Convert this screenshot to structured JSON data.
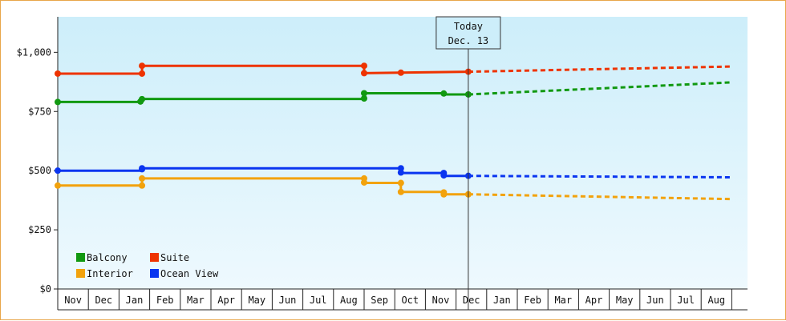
{
  "chart_data": {
    "type": "line",
    "title": "",
    "xlabel": "",
    "ylabel": "",
    "ylim": [
      0,
      1150
    ],
    "yticks": [
      {
        "value": 0,
        "label": "$0"
      },
      {
        "value": 250,
        "label": "$250"
      },
      {
        "value": 500,
        "label": "$500"
      },
      {
        "value": 750,
        "label": "$750"
      },
      {
        "value": 1000,
        "label": "$1,000"
      }
    ],
    "months": [
      "Nov",
      "Dec",
      "Jan",
      "Feb",
      "Mar",
      "Apr",
      "May",
      "Jun",
      "Jul",
      "Aug",
      "Sep",
      "Oct",
      "Nov",
      "Dec",
      "Jan",
      "Feb",
      "Mar",
      "Apr",
      "May",
      "Jun",
      "Jul",
      "Aug"
    ],
    "today": {
      "line1": "Today",
      "line2": "Dec. 13",
      "position": 13.4
    },
    "legend_position": "bottom-left",
    "grid": false,
    "series": [
      {
        "name": "Balcony",
        "color": "#119911",
        "history": [
          {
            "x": 0.0,
            "y": 790
          },
          {
            "x": 2.75,
            "y": 790
          },
          {
            "x": 2.75,
            "y": 803
          },
          {
            "x": 10.0,
            "y": 803
          },
          {
            "x": 10.0,
            "y": 827
          },
          {
            "x": 12.6,
            "y": 827
          },
          {
            "x": 12.6,
            "y": 822
          },
          {
            "x": 13.4,
            "y": 822
          }
        ],
        "markers": [
          {
            "x": 0.0,
            "y": 790
          },
          {
            "x": 2.7,
            "y": 792
          },
          {
            "x": 2.75,
            "y": 802
          },
          {
            "x": 10.0,
            "y": 805
          },
          {
            "x": 10.0,
            "y": 827
          },
          {
            "x": 12.6,
            "y": 826
          },
          {
            "x": 13.4,
            "y": 822
          }
        ],
        "forecast": [
          {
            "x": 13.4,
            "y": 822
          },
          {
            "x": 22.0,
            "y": 873
          }
        ]
      },
      {
        "name": "Suite",
        "color": "#ee3300",
        "history": [
          {
            "x": 0.0,
            "y": 910
          },
          {
            "x": 2.75,
            "y": 910
          },
          {
            "x": 2.75,
            "y": 943
          },
          {
            "x": 10.0,
            "y": 943
          },
          {
            "x": 10.0,
            "y": 912
          },
          {
            "x": 13.4,
            "y": 918
          }
        ],
        "markers": [
          {
            "x": 0.0,
            "y": 910
          },
          {
            "x": 2.75,
            "y": 910
          },
          {
            "x": 2.75,
            "y": 943
          },
          {
            "x": 10.0,
            "y": 943
          },
          {
            "x": 10.0,
            "y": 912
          },
          {
            "x": 11.2,
            "y": 914
          },
          {
            "x": 13.4,
            "y": 918
          }
        ],
        "forecast": [
          {
            "x": 13.4,
            "y": 918
          },
          {
            "x": 22.0,
            "y": 940
          }
        ]
      },
      {
        "name": "Interior",
        "color": "#f2a20c",
        "history": [
          {
            "x": 0.0,
            "y": 437
          },
          {
            "x": 2.75,
            "y": 437
          },
          {
            "x": 2.75,
            "y": 467
          },
          {
            "x": 10.0,
            "y": 467
          },
          {
            "x": 10.0,
            "y": 448
          },
          {
            "x": 11.2,
            "y": 448
          },
          {
            "x": 11.2,
            "y": 410
          },
          {
            "x": 12.6,
            "y": 410
          },
          {
            "x": 12.6,
            "y": 400
          },
          {
            "x": 13.4,
            "y": 400
          }
        ],
        "markers": [
          {
            "x": 0.0,
            "y": 437
          },
          {
            "x": 2.75,
            "y": 437
          },
          {
            "x": 2.75,
            "y": 467
          },
          {
            "x": 10.0,
            "y": 467
          },
          {
            "x": 10.0,
            "y": 450
          },
          {
            "x": 11.2,
            "y": 448
          },
          {
            "x": 11.2,
            "y": 410
          },
          {
            "x": 12.6,
            "y": 408
          },
          {
            "x": 12.6,
            "y": 400
          },
          {
            "x": 13.4,
            "y": 400
          }
        ],
        "forecast": [
          {
            "x": 13.4,
            "y": 400
          },
          {
            "x": 22.0,
            "y": 380
          }
        ]
      },
      {
        "name": "Ocean View",
        "color": "#0a35f0",
        "history": [
          {
            "x": 0.0,
            "y": 500
          },
          {
            "x": 2.75,
            "y": 500
          },
          {
            "x": 2.75,
            "y": 510
          },
          {
            "x": 11.2,
            "y": 510
          },
          {
            "x": 11.2,
            "y": 490
          },
          {
            "x": 12.6,
            "y": 490
          },
          {
            "x": 12.6,
            "y": 478
          },
          {
            "x": 13.4,
            "y": 478
          }
        ],
        "markers": [
          {
            "x": 0.0,
            "y": 500
          },
          {
            "x": 2.75,
            "y": 506
          },
          {
            "x": 2.75,
            "y": 510
          },
          {
            "x": 11.2,
            "y": 510
          },
          {
            "x": 11.2,
            "y": 492
          },
          {
            "x": 12.6,
            "y": 490
          },
          {
            "x": 12.6,
            "y": 480
          },
          {
            "x": 13.4,
            "y": 478
          }
        ],
        "forecast": [
          {
            "x": 13.4,
            "y": 478
          },
          {
            "x": 22.0,
            "y": 472
          }
        ]
      }
    ]
  }
}
